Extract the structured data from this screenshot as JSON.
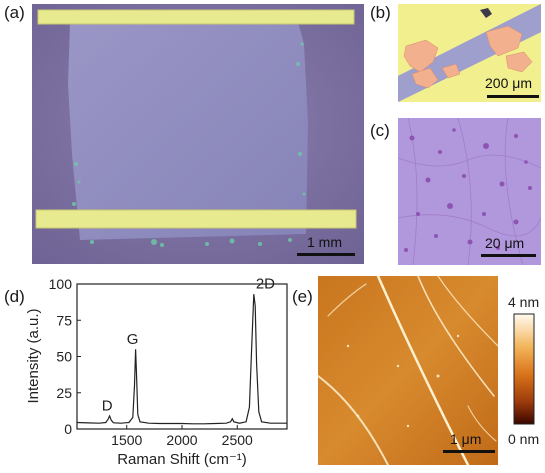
{
  "panels": {
    "a": {
      "label": "(a)",
      "scale_bar": "1 mm",
      "colors": {
        "substrate": "#7d6f9e",
        "film": "#8f8cc0",
        "electrode": "#e7ea8f",
        "residue": "#6fc6a7"
      }
    },
    "b": {
      "label": "(b)",
      "scale_bar": "200 μm",
      "colors": {
        "background": "#a7a6cf",
        "electrode": "#f1ef8e",
        "flakes": "#f2b08f"
      }
    },
    "c": {
      "label": "(c)",
      "scale_bar": "20 μm",
      "colors": {
        "background": "#b197db",
        "spots": "#8e54b4"
      }
    },
    "d": {
      "label": "(d)",
      "peak_labels": [
        "D",
        "G",
        "2D"
      ]
    },
    "e": {
      "label": "(e)",
      "scale_bar": "1 μm",
      "colorbar": {
        "max_label": "4 nm",
        "min_label": "0 nm",
        "colors": [
          "#fffbf0",
          "#f2b45a",
          "#d9731a",
          "#9c3a0c",
          "#3a0600"
        ]
      }
    }
  },
  "chart_data": {
    "type": "line",
    "xlabel": "Raman Shift (cm⁻¹)",
    "ylabel": "Intensity (a.u.)",
    "xlim": [
      1050,
      2950
    ],
    "ylim": [
      0,
      100
    ],
    "xticks": [
      1500,
      2000,
      2500
    ],
    "yticks": [
      0,
      25,
      50,
      75,
      100
    ],
    "grid": false,
    "series": [
      {
        "color": "#222222",
        "points": [
          [
            1050,
            4.5
          ],
          [
            1150,
            4.2
          ],
          [
            1250,
            4.0
          ],
          [
            1310,
            4.5
          ],
          [
            1330,
            6.5
          ],
          [
            1345,
            9.0
          ],
          [
            1360,
            6.0
          ],
          [
            1380,
            4.3
          ],
          [
            1450,
            4.0
          ],
          [
            1520,
            4.5
          ],
          [
            1555,
            8.0
          ],
          [
            1570,
            30.0
          ],
          [
            1580,
            55.0
          ],
          [
            1588,
            38.0
          ],
          [
            1600,
            10.0
          ],
          [
            1620,
            5.0
          ],
          [
            1700,
            4.0
          ],
          [
            1800,
            3.8
          ],
          [
            1900,
            3.8
          ],
          [
            2000,
            3.8
          ],
          [
            2100,
            3.6
          ],
          [
            2200,
            3.6
          ],
          [
            2300,
            3.8
          ],
          [
            2400,
            4.0
          ],
          [
            2440,
            5.0
          ],
          [
            2455,
            7.0
          ],
          [
            2470,
            5.0
          ],
          [
            2520,
            4.0
          ],
          [
            2580,
            5.0
          ],
          [
            2610,
            15.0
          ],
          [
            2630,
            55.0
          ],
          [
            2650,
            93.0
          ],
          [
            2662,
            85.0
          ],
          [
            2675,
            45.0
          ],
          [
            2695,
            12.0
          ],
          [
            2720,
            5.0
          ],
          [
            2800,
            4.0
          ],
          [
            2950,
            4.0
          ]
        ]
      }
    ],
    "annotations": [
      {
        "text": "D",
        "x": 1350,
        "y": 10
      },
      {
        "text": "G",
        "x": 1580,
        "y": 56
      },
      {
        "text": "2D",
        "x": 2650,
        "y": 94
      }
    ]
  }
}
